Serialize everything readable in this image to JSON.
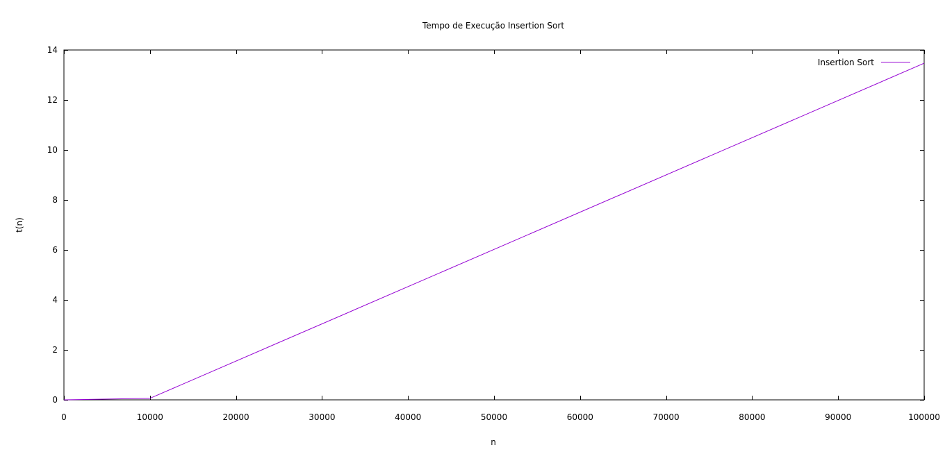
{
  "chart_data": {
    "type": "line",
    "title": "Tempo de Execução Insertion Sort",
    "xlabel": "n",
    "ylabel": "t(n)",
    "xlim": [
      0,
      100000
    ],
    "ylim": [
      0,
      14
    ],
    "xticks": [
      0,
      10000,
      20000,
      30000,
      40000,
      50000,
      60000,
      70000,
      80000,
      90000,
      100000
    ],
    "yticks": [
      0,
      2,
      4,
      6,
      8,
      10,
      12,
      14
    ],
    "grid": false,
    "legend_position": "top-right",
    "series": [
      {
        "name": "Insertion Sort",
        "color": "#9400d3",
        "x": [
          0,
          10000,
          100000
        ],
        "y": [
          0,
          0.06,
          13.47
        ]
      }
    ]
  }
}
